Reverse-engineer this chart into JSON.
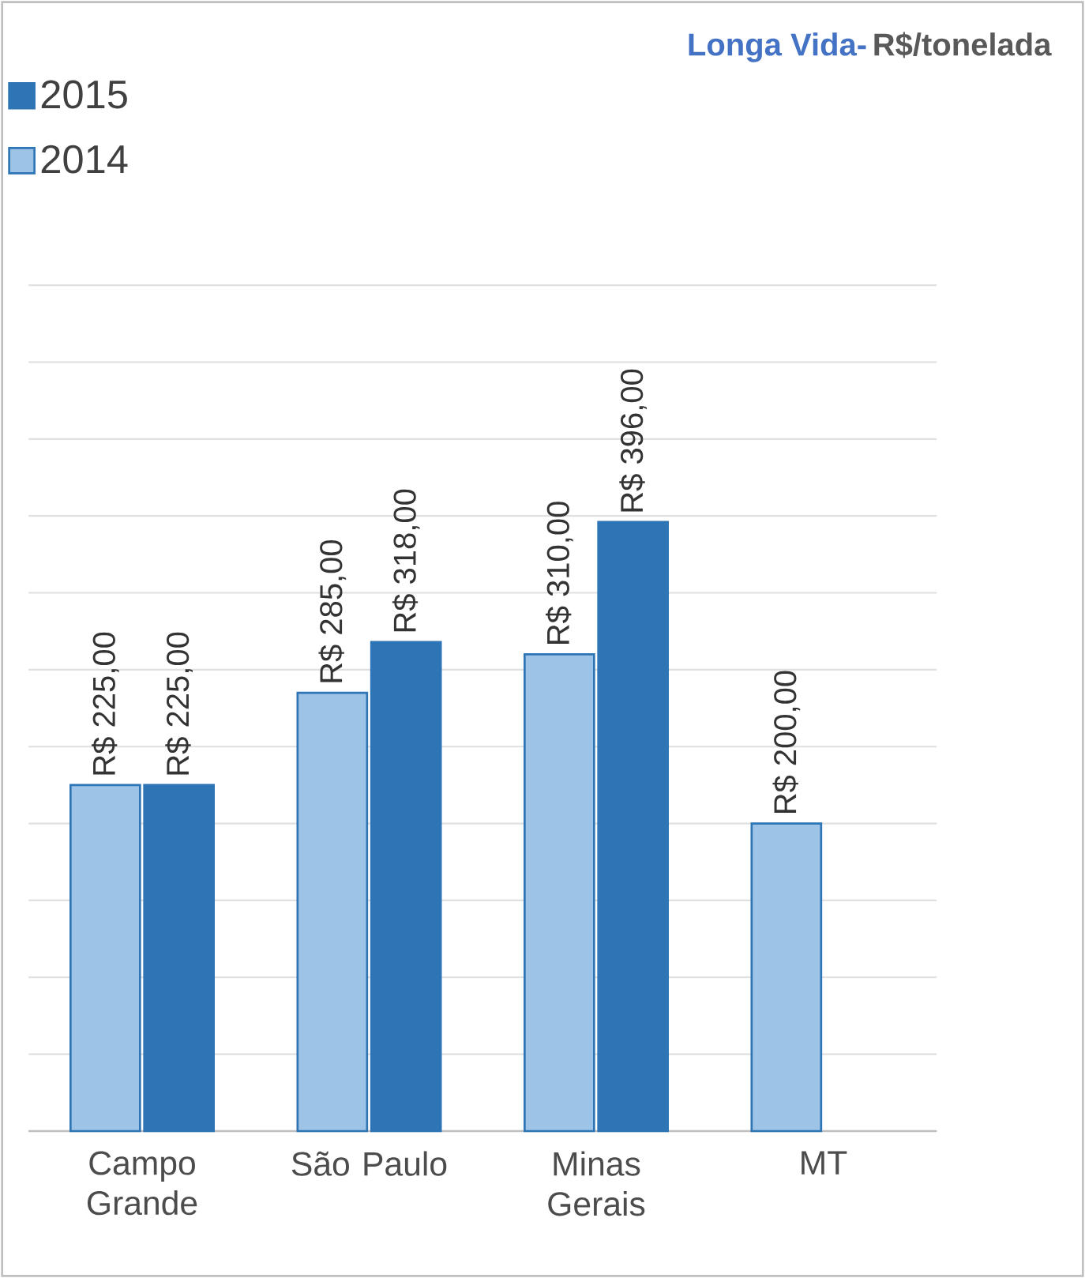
{
  "chart_data": {
    "type": "bar",
    "title": "Longa Vida-",
    "subtitle": "R$/tonelada",
    "categories": [
      "Campo Grande",
      "São Paulo",
      "Minas Gerais",
      "MT"
    ],
    "series": [
      {
        "name": "2014",
        "color": "#9dc3e6",
        "values": [
          225,
          285,
          310,
          200
        ],
        "value_labels": [
          "R$ 225,00",
          "R$ 285,00",
          "R$ 310,00",
          "R$ 200,00"
        ]
      },
      {
        "name": "2015",
        "color": "#2e75b6",
        "values": [
          225,
          318,
          396,
          null
        ],
        "value_labels": [
          "R$ 225,00",
          "R$ 318,00",
          "R$ 396,00",
          null
        ]
      }
    ],
    "tick_labels": "x",
    "grid": "y",
    "legend": "top left"
  }
}
